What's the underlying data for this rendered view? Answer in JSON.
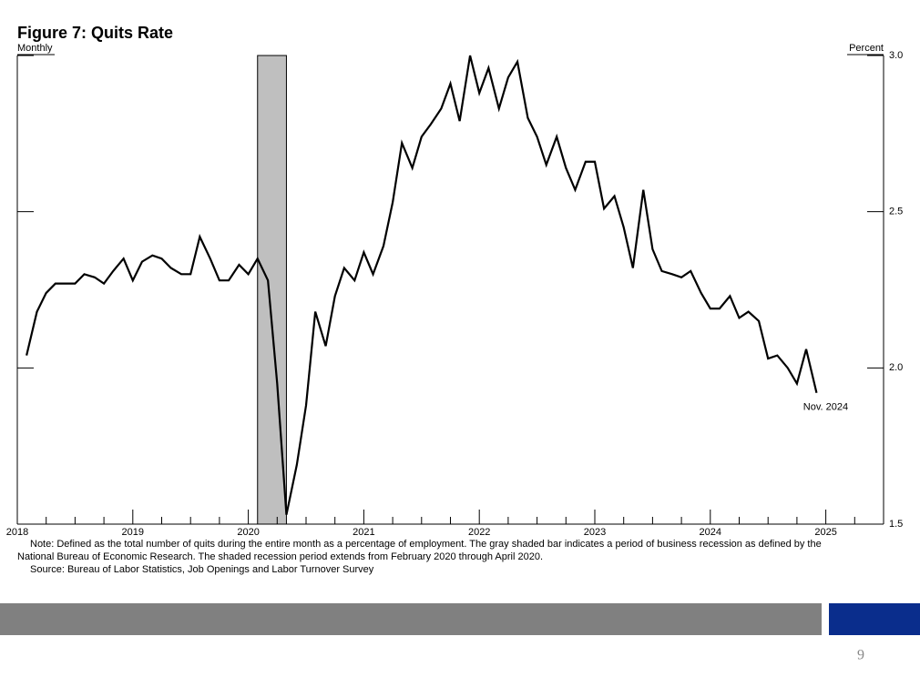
{
  "chart_data": {
    "type": "line",
    "title": "Figure 7: Quits Rate",
    "subtitle": "Monthly",
    "ylabel": "Percent",
    "x": [
      2018.08,
      2018.17,
      2018.25,
      2018.33,
      2018.42,
      2018.5,
      2018.58,
      2018.67,
      2018.75,
      2018.83,
      2018.92,
      2019.0,
      2019.08,
      2019.17,
      2019.25,
      2019.33,
      2019.42,
      2019.5,
      2019.58,
      2019.67,
      2019.75,
      2019.83,
      2019.92,
      2020.0,
      2020.08,
      2020.17,
      2020.25,
      2020.33,
      2020.42,
      2020.5,
      2020.58,
      2020.67,
      2020.75,
      2020.83,
      2020.92,
      2021.0,
      2021.08,
      2021.17,
      2021.25,
      2021.33,
      2021.42,
      2021.5,
      2021.58,
      2021.67,
      2021.75,
      2021.83,
      2021.92,
      2022.0,
      2022.08,
      2022.17,
      2022.25,
      2022.33,
      2022.42,
      2022.5,
      2022.58,
      2022.67,
      2022.75,
      2022.83,
      2022.92,
      2023.0,
      2023.08,
      2023.17,
      2023.25,
      2023.33,
      2023.42,
      2023.5,
      2023.58,
      2023.67,
      2023.75,
      2023.83,
      2023.92,
      2024.0,
      2024.08,
      2024.17,
      2024.25,
      2024.33,
      2024.42,
      2024.5,
      2024.58,
      2024.67,
      2024.75,
      2024.83,
      2024.92
    ],
    "values": [
      2.04,
      2.18,
      2.24,
      2.27,
      2.27,
      2.27,
      2.3,
      2.29,
      2.27,
      2.31,
      2.35,
      2.28,
      2.34,
      2.36,
      2.35,
      2.32,
      2.3,
      2.3,
      2.42,
      2.35,
      2.28,
      2.28,
      2.33,
      2.3,
      2.35,
      2.28,
      1.95,
      1.53,
      1.69,
      1.88,
      2.18,
      2.07,
      2.23,
      2.32,
      2.28,
      2.37,
      2.3,
      2.39,
      2.53,
      2.72,
      2.64,
      2.74,
      2.78,
      2.83,
      2.91,
      2.79,
      3.0,
      2.88,
      2.96,
      2.83,
      2.93,
      2.98,
      2.8,
      2.74,
      2.65,
      2.74,
      2.64,
      2.57,
      2.66,
      2.66,
      2.51,
      2.55,
      2.45,
      2.32,
      2.57,
      2.38,
      2.31,
      2.3,
      2.29,
      2.31,
      2.24,
      2.19,
      2.19,
      2.23,
      2.16,
      2.18,
      2.15,
      2.03,
      2.04,
      2.0,
      1.95,
      2.06,
      1.92
    ],
    "color": "#000000",
    "shaded_span": [
      2020.08,
      2020.33
    ],
    "shade_color": "#bfbfbf",
    "xlim": [
      2018,
      2025.5
    ],
    "xticks": [
      2018,
      2019,
      2020,
      2021,
      2022,
      2023,
      2024,
      2025
    ],
    "xminorticks": [
      2018.25,
      2018.5,
      2018.75,
      2019.25,
      2019.5,
      2019.75,
      2020.25,
      2020.5,
      2020.75,
      2021.25,
      2021.5,
      2021.75,
      2022.25,
      2022.5,
      2022.75,
      2023.25,
      2023.5,
      2023.75,
      2024.25,
      2024.5,
      2024.75,
      2025.25
    ],
    "ylim": [
      1.5,
      3.0
    ],
    "yticks": [
      {
        "value": 3,
        "label": "3.0"
      },
      2.5,
      {
        "value": 2,
        "label": "2.0"
      },
      1.5
    ],
    "annotation": "Nov. 2024",
    "note": [
      "Note: Defined as the total number of quits during the entire month as a percentage of employment. The gray shaded bar indicates a period of business recession as defined by the",
      "National Bureau of Economic Research. The shaded recession period extends from February 2020 through April 2020."
    ],
    "source": "Source: Bureau of Labor Statistics, Job Openings and Labor Turnover Survey"
  },
  "footer": {
    "page_number": "9"
  }
}
